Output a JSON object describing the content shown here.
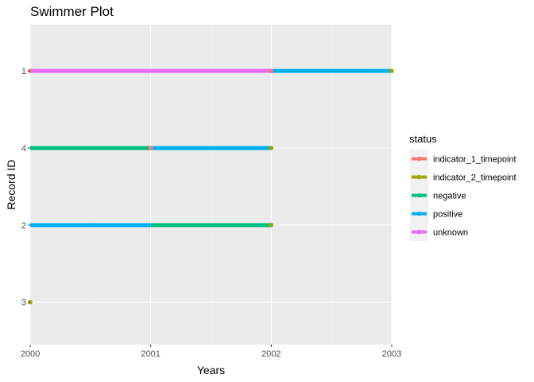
{
  "chart_data": {
    "type": "swimmer",
    "title": "Swimmer Plot",
    "xlabel": "Years",
    "ylabel": "Record ID",
    "xlim": [
      2000,
      2003
    ],
    "x_ticks": [
      2000,
      2001,
      2002,
      2003
    ],
    "x_tick_labels": [
      "2000",
      "2001",
      "2002",
      "2003"
    ],
    "y_categories": [
      "1",
      "4",
      "2",
      "3"
    ],
    "grid": true,
    "legend": {
      "title": "status",
      "position": "right",
      "entries": [
        {
          "label": "indicator_1_timepoint",
          "color": "#F8766D"
        },
        {
          "label": "indicator_2_timepoint",
          "color": "#A3A500"
        },
        {
          "label": "negative",
          "color": "#00BF7D"
        },
        {
          "label": "positive",
          "color": "#00B0F6"
        },
        {
          "label": "unknown",
          "color": "#E76BF3"
        }
      ]
    },
    "segments": [
      {
        "id": "1",
        "status": "unknown",
        "start": 2000,
        "end": 2002
      },
      {
        "id": "1",
        "status": "positive",
        "start": 2002,
        "end": 2003
      },
      {
        "id": "4",
        "status": "negative",
        "start": 2000,
        "end": 2001
      },
      {
        "id": "4",
        "status": "positive",
        "start": 2001,
        "end": 2002
      },
      {
        "id": "2",
        "status": "positive",
        "start": 2000,
        "end": 2001
      },
      {
        "id": "2",
        "status": "negative",
        "start": 2001,
        "end": 2002
      }
    ],
    "points": [
      {
        "id": "1",
        "status": "indicator_1_timepoint",
        "x": 2000
      },
      {
        "id": "1",
        "status": "indicator_1_timepoint",
        "x": 2002
      },
      {
        "id": "1",
        "status": "indicator_2_timepoint",
        "x": 2003
      },
      {
        "id": "4",
        "status": "indicator_1_timepoint",
        "x": 2001
      },
      {
        "id": "4",
        "status": "indicator_2_timepoint",
        "x": 2002
      },
      {
        "id": "2",
        "status": "indicator_2_timepoint",
        "x": 2002
      },
      {
        "id": "3",
        "status": "indicator_2_timepoint",
        "x": 2000
      }
    ]
  }
}
